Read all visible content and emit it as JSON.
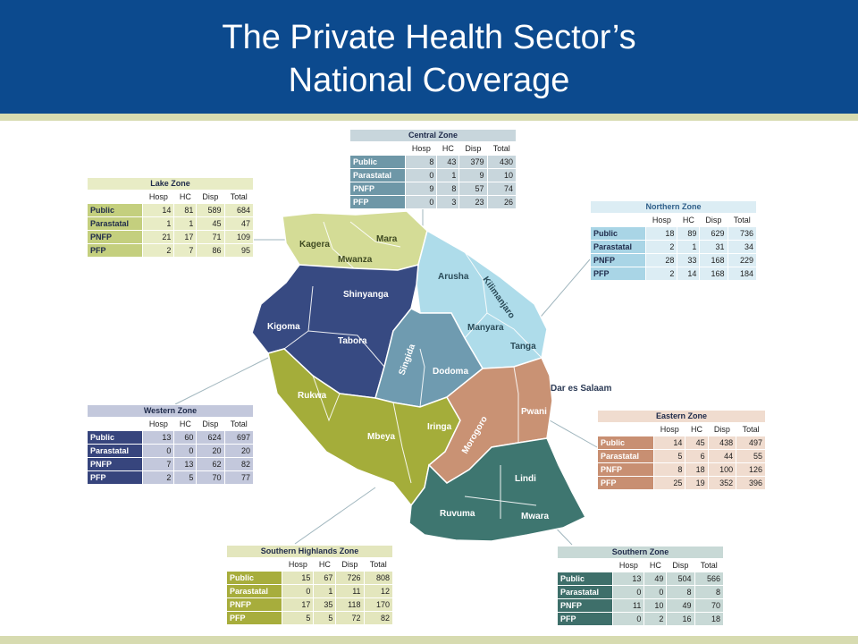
{
  "slide": {
    "title_line1": "The Private Health Sector’s",
    "title_line2": "National Coverage",
    "colors": {
      "header": "#0c4a8e",
      "stripe": "#d7dbb0"
    }
  },
  "regions": {
    "kagera": "Kagera",
    "mara": "Mara",
    "mwanza": "Mwanza",
    "shinyanga": "Shinyanga",
    "kigoma": "Kigoma",
    "tabora": "Tabora",
    "arusha": "Arusha",
    "kilimanjaro": "Kilimanjaro",
    "manyara": "Manyara",
    "tanga": "Tanga",
    "singida": "Singida",
    "dodoma": "Dodoma",
    "rukwa": "Rukwa",
    "iringa": "Iringa",
    "mbeya": "Mbeya",
    "morogoro": "Morogoro",
    "pwani": "Pwani",
    "dar": "Dar es Salaam",
    "lindi": "Lindi",
    "ruvuma": "Ruvuma",
    "mwara": "Mwara"
  },
  "columns": [
    "Hosp",
    "HC",
    "Disp",
    "Total"
  ],
  "row_labels": [
    "Public",
    "Parastatal",
    "PNFP",
    "PFP"
  ],
  "zones": {
    "central": {
      "name": "Central Zone",
      "color": "#6e97a7",
      "light": "#c8d6dc",
      "rows": [
        [
          "8",
          "43",
          "379",
          "430"
        ],
        [
          "0",
          "1",
          "9",
          "10"
        ],
        [
          "9",
          "8",
          "57",
          "74"
        ],
        [
          "0",
          "3",
          "23",
          "26"
        ]
      ]
    },
    "lake": {
      "name": "Lake Zone",
      "color": "#c4cf7e",
      "light": "#e8ecc5",
      "rows": [
        [
          "14",
          "81",
          "589",
          "684"
        ],
        [
          "1",
          "1",
          "45",
          "47"
        ],
        [
          "21",
          "17",
          "71",
          "109"
        ],
        [
          "2",
          "7",
          "86",
          "95"
        ]
      ]
    },
    "northern": {
      "name": "Northern Zone",
      "color": "#a9d5e6",
      "light": "#dcedf4",
      "rows": [
        [
          "18",
          "89",
          "629",
          "736"
        ],
        [
          "2",
          "1",
          "31",
          "34"
        ],
        [
          "28",
          "33",
          "168",
          "229"
        ],
        [
          "2",
          "14",
          "168",
          "184"
        ]
      ]
    },
    "western": {
      "name": "Western Zone",
      "color": "#37457d",
      "light": "#c3c8dc",
      "rows": [
        [
          "13",
          "60",
          "624",
          "697"
        ],
        [
          "0",
          "0",
          "20",
          "20"
        ],
        [
          "7",
          "13",
          "62",
          "82"
        ],
        [
          "2",
          "5",
          "70",
          "77"
        ]
      ]
    },
    "eastern": {
      "name": "Eastern Zone",
      "color": "#c88f72",
      "light": "#f0dccf",
      "rows": [
        [
          "14",
          "45",
          "438",
          "497"
        ],
        [
          "5",
          "6",
          "44",
          "55"
        ],
        [
          "8",
          "18",
          "100",
          "126"
        ],
        [
          "25",
          "19",
          "352",
          "396"
        ]
      ]
    },
    "southern_highlands": {
      "name": "Southern Highlands Zone",
      "color": "#a7ad3c",
      "light": "#e3e6bd",
      "rows": [
        [
          "15",
          "67",
          "726",
          "808"
        ],
        [
          "0",
          "1",
          "11",
          "12"
        ],
        [
          "17",
          "35",
          "118",
          "170"
        ],
        [
          "5",
          "5",
          "72",
          "82"
        ]
      ]
    },
    "southern": {
      "name": "Southern Zone",
      "color": "#3e6f6a",
      "light": "#c8d9d6",
      "rows": [
        [
          "13",
          "49",
          "504",
          "566"
        ],
        [
          "0",
          "0",
          "8",
          "8"
        ],
        [
          "11",
          "10",
          "49",
          "70"
        ],
        [
          "0",
          "2",
          "16",
          "18"
        ]
      ]
    }
  }
}
